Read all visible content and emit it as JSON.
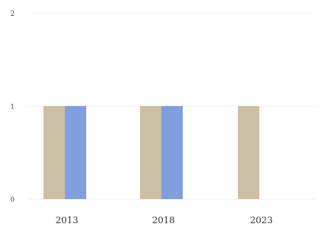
{
  "chart_data": {
    "type": "bar",
    "title": "",
    "xlabel": "",
    "ylabel": "",
    "categories": [
      "2013",
      "2018",
      "2023"
    ],
    "series": [
      {
        "values": [
          1,
          1,
          1
        ],
        "color": "#cdbfa6"
      },
      {
        "values": [
          1,
          1,
          0
        ],
        "color": "#7f9fde"
      }
    ],
    "ylim": [
      0,
      2
    ],
    "yticks": [
      "0",
      "1",
      "2"
    ],
    "grid": true,
    "legend": "none"
  }
}
